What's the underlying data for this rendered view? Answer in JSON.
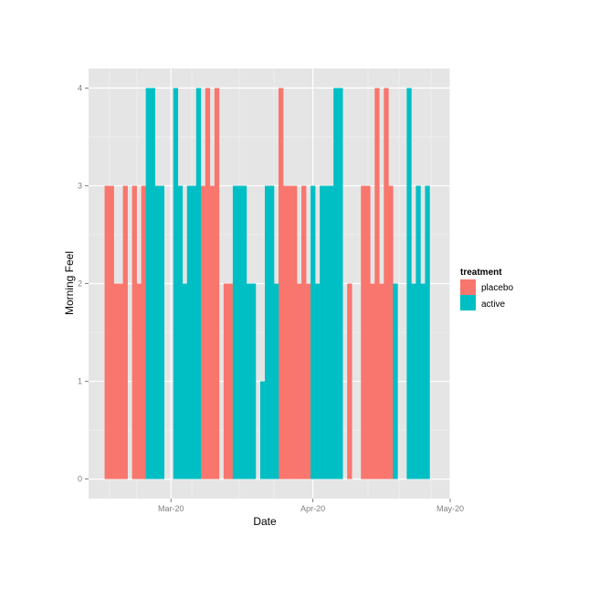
{
  "chart_data": {
    "type": "bar",
    "title": "",
    "xlabel": "Date",
    "ylabel": "Morning Feel",
    "ylim": [
      -0.2,
      4.2
    ],
    "y_ticks": [
      0,
      1,
      2,
      3,
      4
    ],
    "x_ticks": [
      {
        "label": "Mar-20",
        "date": "2020-03-20"
      },
      {
        "label": "Apr-20",
        "date": "2020-04-20"
      },
      {
        "label": "May-20",
        "date": "2020-05-20"
      }
    ],
    "x_range": [
      "2020-03-02",
      "2020-05-20"
    ],
    "grid": true,
    "legend": {
      "title": "treatment",
      "position": "right",
      "entries": [
        {
          "label": "placebo",
          "color": "#F8766D"
        },
        {
          "label": "active",
          "color": "#00BFC4"
        }
      ]
    },
    "series": [
      {
        "name": "placebo",
        "color": "#F8766D",
        "points": [
          {
            "date": "2020-03-06",
            "value": 3
          },
          {
            "date": "2020-03-07",
            "value": 3
          },
          {
            "date": "2020-03-08",
            "value": 2
          },
          {
            "date": "2020-03-09",
            "value": 2
          },
          {
            "date": "2020-03-10",
            "value": 3
          },
          {
            "date": "2020-03-12",
            "value": 3
          },
          {
            "date": "2020-03-13",
            "value": 2
          },
          {
            "date": "2020-03-14",
            "value": 3
          },
          {
            "date": "2020-03-27",
            "value": 3
          },
          {
            "date": "2020-03-28",
            "value": 4
          },
          {
            "date": "2020-03-29",
            "value": 3
          },
          {
            "date": "2020-03-30",
            "value": 4
          },
          {
            "date": "2020-04-01",
            "value": 2
          },
          {
            "date": "2020-04-02",
            "value": 2
          },
          {
            "date": "2020-04-13",
            "value": 4
          },
          {
            "date": "2020-04-14",
            "value": 3
          },
          {
            "date": "2020-04-15",
            "value": 3
          },
          {
            "date": "2020-04-16",
            "value": 3
          },
          {
            "date": "2020-04-17",
            "value": 2
          },
          {
            "date": "2020-04-18",
            "value": 3
          },
          {
            "date": "2020-04-19",
            "value": 2
          },
          {
            "date": "2020-04-28",
            "value": 2
          },
          {
            "date": "2020-05-01",
            "value": 3
          },
          {
            "date": "2020-05-02",
            "value": 3
          },
          {
            "date": "2020-05-03",
            "value": 2
          },
          {
            "date": "2020-05-04",
            "value": 4
          },
          {
            "date": "2020-05-05",
            "value": 2
          },
          {
            "date": "2020-05-06",
            "value": 4
          },
          {
            "date": "2020-05-07",
            "value": 3
          }
        ]
      },
      {
        "name": "active",
        "color": "#00BFC4",
        "points": [
          {
            "date": "2020-03-15",
            "value": 4
          },
          {
            "date": "2020-03-16",
            "value": 4
          },
          {
            "date": "2020-03-17",
            "value": 3
          },
          {
            "date": "2020-03-18",
            "value": 3
          },
          {
            "date": "2020-03-21",
            "value": 4
          },
          {
            "date": "2020-03-22",
            "value": 3
          },
          {
            "date": "2020-03-23",
            "value": 2
          },
          {
            "date": "2020-03-24",
            "value": 3
          },
          {
            "date": "2020-03-25",
            "value": 3
          },
          {
            "date": "2020-03-26",
            "value": 4
          },
          {
            "date": "2020-04-03",
            "value": 3
          },
          {
            "date": "2020-04-04",
            "value": 3
          },
          {
            "date": "2020-04-05",
            "value": 3
          },
          {
            "date": "2020-04-06",
            "value": 2
          },
          {
            "date": "2020-04-07",
            "value": 2
          },
          {
            "date": "2020-04-09",
            "value": 1
          },
          {
            "date": "2020-04-10",
            "value": 3
          },
          {
            "date": "2020-04-11",
            "value": 3
          },
          {
            "date": "2020-04-12",
            "value": 2
          },
          {
            "date": "2020-04-20",
            "value": 3
          },
          {
            "date": "2020-04-21",
            "value": 2
          },
          {
            "date": "2020-04-22",
            "value": 3
          },
          {
            "date": "2020-04-23",
            "value": 3
          },
          {
            "date": "2020-04-24",
            "value": 3
          },
          {
            "date": "2020-04-25",
            "value": 4
          },
          {
            "date": "2020-04-26",
            "value": 4
          },
          {
            "date": "2020-05-08",
            "value": 2
          },
          {
            "date": "2020-05-11",
            "value": 4
          },
          {
            "date": "2020-05-12",
            "value": 2
          },
          {
            "date": "2020-05-13",
            "value": 3
          },
          {
            "date": "2020-05-14",
            "value": 2
          },
          {
            "date": "2020-05-15",
            "value": 3
          }
        ]
      }
    ]
  },
  "style": {
    "panel_bg": "#E5E5E5",
    "grid_major": "#FFFFFF",
    "grid_minor": "#F2F2F2",
    "tick_color": "#7F7F7F"
  }
}
